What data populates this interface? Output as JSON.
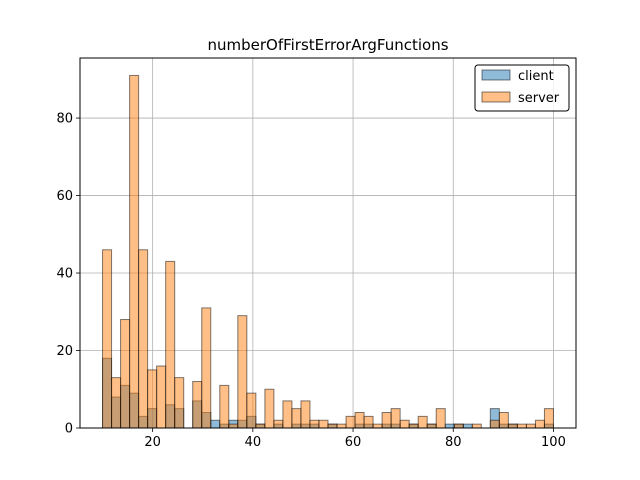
{
  "chart_data": {
    "type": "bar",
    "title": "numberOfFirstErrorArgFunctions",
    "xlabel": "",
    "ylabel": "",
    "xlim": [
      5.5,
      104.5
    ],
    "ylim": [
      0,
      95.5
    ],
    "x_ticks": [
      20,
      40,
      60,
      80,
      100
    ],
    "y_ticks": [
      0,
      20,
      40,
      60,
      80
    ],
    "grid": true,
    "legend_position": "top-right",
    "bin_width": 1.8,
    "bin_starts": [
      10,
      11.8,
      13.6,
      15.4,
      17.2,
      19,
      20.8,
      22.6,
      24.4,
      26.2,
      28,
      29.8,
      31.6,
      33.4,
      35.2,
      37,
      38.8,
      40.6,
      42.4,
      44.2,
      46,
      47.8,
      49.6,
      51.4,
      53.2,
      55,
      56.8,
      58.6,
      60.4,
      62.2,
      64,
      65.8,
      67.6,
      69.4,
      71.2,
      73,
      74.8,
      76.6,
      78.4,
      80.2,
      82,
      83.8,
      85.6,
      87.4,
      89.2,
      91,
      92.8,
      94.6,
      96.4,
      98.2
    ],
    "series": [
      {
        "name": "client",
        "color": "#1f77b4",
        "values": [
          18,
          8,
          11,
          9,
          3,
          5,
          0,
          6,
          5,
          0,
          7,
          4,
          2,
          1,
          2,
          2,
          3,
          1,
          0,
          1,
          0,
          1,
          1,
          1,
          0,
          1,
          0,
          0,
          1,
          1,
          0,
          1,
          1,
          0,
          1,
          0,
          1,
          0,
          1,
          1,
          1,
          0,
          0,
          5,
          1,
          1,
          0,
          0,
          0,
          1
        ]
      },
      {
        "name": "server",
        "color": "#ff7f0e",
        "values": [
          46,
          13,
          28,
          91,
          46,
          15,
          16,
          43,
          13,
          0,
          12,
          31,
          0,
          11,
          1,
          29,
          9,
          1,
          10,
          2,
          7,
          5,
          7,
          2,
          2,
          1,
          1,
          3,
          4,
          3,
          1,
          4,
          5,
          2,
          1,
          3,
          1,
          5,
          0,
          1,
          0,
          1,
          0,
          2,
          4,
          1,
          1,
          1,
          2,
          5
        ]
      }
    ]
  }
}
